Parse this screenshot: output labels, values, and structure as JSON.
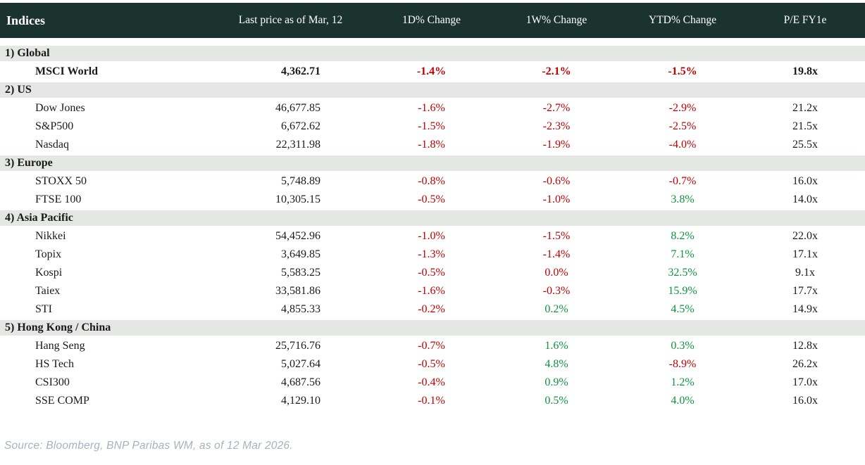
{
  "chart_data": {
    "type": "table",
    "title": "Indices",
    "columns": [
      "Last price as of Mar, 12",
      "1D% Change",
      "1W% Change",
      "YTD% Change",
      "P/E FY1e"
    ],
    "sections": [
      {
        "label": "1) Global",
        "rows": [
          {
            "name": "MSCI World",
            "bold": true,
            "last": "4,362.71",
            "changes": [
              {
                "v": "-1.4%",
                "c": "neg"
              },
              {
                "v": "-2.1%",
                "c": "neg"
              },
              {
                "v": "-1.5%",
                "c": "neg"
              }
            ],
            "pe": "19.8x"
          }
        ]
      },
      {
        "label": "2) US",
        "rows": [
          {
            "name": "Dow Jones",
            "bold": false,
            "last": "46,677.85",
            "changes": [
              {
                "v": "-1.6%",
                "c": "neg"
              },
              {
                "v": "-2.7%",
                "c": "neg"
              },
              {
                "v": "-2.9%",
                "c": "neg"
              }
            ],
            "pe": "21.2x"
          },
          {
            "name": "S&P500",
            "bold": false,
            "last": "6,672.62",
            "changes": [
              {
                "v": "-1.5%",
                "c": "neg"
              },
              {
                "v": "-2.3%",
                "c": "neg"
              },
              {
                "v": "-2.5%",
                "c": "neg"
              }
            ],
            "pe": "21.5x"
          },
          {
            "name": "Nasdaq",
            "bold": false,
            "last": "22,311.98",
            "changes": [
              {
                "v": "-1.8%",
                "c": "neg"
              },
              {
                "v": "-1.9%",
                "c": "neg"
              },
              {
                "v": "-4.0%",
                "c": "neg"
              }
            ],
            "pe": "25.5x"
          }
        ]
      },
      {
        "label": "3) Europe",
        "rows": [
          {
            "name": "STOXX 50",
            "bold": false,
            "last": "5,748.89",
            "changes": [
              {
                "v": "-0.8%",
                "c": "neg"
              },
              {
                "v": "-0.6%",
                "c": "neg"
              },
              {
                "v": "-0.7%",
                "c": "neg"
              }
            ],
            "pe": "16.0x"
          },
          {
            "name": "FTSE 100",
            "bold": false,
            "last": "10,305.15",
            "changes": [
              {
                "v": "-0.5%",
                "c": "neg"
              },
              {
                "v": "-1.0%",
                "c": "neg"
              },
              {
                "v": "3.8%",
                "c": "pos"
              }
            ],
            "pe": "14.0x"
          }
        ]
      },
      {
        "label": "4) Asia Pacific",
        "rows": [
          {
            "name": "Nikkei",
            "bold": false,
            "last": "54,452.96",
            "changes": [
              {
                "v": "-1.0%",
                "c": "neg"
              },
              {
                "v": "-1.5%",
                "c": "neg"
              },
              {
                "v": "8.2%",
                "c": "pos"
              }
            ],
            "pe": "22.0x"
          },
          {
            "name": "Topix",
            "bold": false,
            "last": "3,649.85",
            "changes": [
              {
                "v": "-1.3%",
                "c": "neg"
              },
              {
                "v": "-1.4%",
                "c": "neg"
              },
              {
                "v": "7.1%",
                "c": "pos"
              }
            ],
            "pe": "17.1x"
          },
          {
            "name": "Kospi",
            "bold": false,
            "last": "5,583.25",
            "changes": [
              {
                "v": "-0.5%",
                "c": "neg"
              },
              {
                "v": "0.0%",
                "c": "neg"
              },
              {
                "v": "32.5%",
                "c": "pos"
              }
            ],
            "pe": "9.1x"
          },
          {
            "name": "Taiex",
            "bold": false,
            "last": "33,581.86",
            "changes": [
              {
                "v": "-1.6%",
                "c": "neg"
              },
              {
                "v": "-0.3%",
                "c": "neg"
              },
              {
                "v": "15.9%",
                "c": "pos"
              }
            ],
            "pe": "17.7x"
          },
          {
            "name": "STI",
            "bold": false,
            "last": "4,855.33",
            "changes": [
              {
                "v": "-0.2%",
                "c": "neg"
              },
              {
                "v": "0.2%",
                "c": "pos"
              },
              {
                "v": "4.5%",
                "c": "pos"
              }
            ],
            "pe": "14.9x"
          }
        ]
      },
      {
        "label": "5) Hong Kong / China",
        "rows": [
          {
            "name": "Hang Seng",
            "bold": false,
            "last": "25,716.76",
            "changes": [
              {
                "v": "-0.7%",
                "c": "neg"
              },
              {
                "v": "1.6%",
                "c": "pos"
              },
              {
                "v": "0.3%",
                "c": "pos"
              }
            ],
            "pe": "12.8x"
          },
          {
            "name": "HS Tech",
            "bold": false,
            "last": "5,027.64",
            "changes": [
              {
                "v": "-0.5%",
                "c": "neg"
              },
              {
                "v": "4.8%",
                "c": "pos"
              },
              {
                "v": "-8.9%",
                "c": "neg"
              }
            ],
            "pe": "26.2x"
          },
          {
            "name": "CSI300",
            "bold": false,
            "last": "4,687.56",
            "changes": [
              {
                "v": "-0.4%",
                "c": "neg"
              },
              {
                "v": "0.9%",
                "c": "pos"
              },
              {
                "v": "1.2%",
                "c": "pos"
              }
            ],
            "pe": "17.0x"
          },
          {
            "name": "SSE COMP",
            "bold": false,
            "last": "4,129.10",
            "changes": [
              {
                "v": "-0.1%",
                "c": "neg"
              },
              {
                "v": "0.5%",
                "c": "pos"
              },
              {
                "v": "4.0%",
                "c": "pos"
              }
            ],
            "pe": "16.0x"
          }
        ]
      }
    ]
  },
  "footer": {
    "source": "Source: Bloomberg, BNP Paribas WM, as of 12 Mar 2026."
  },
  "colors": {
    "header_bg": "#1b332e",
    "header_text": "#ffffff",
    "section_bg": "#e4e7e3",
    "negative": "#c00000",
    "positive": "#0c933e",
    "source_text": "#a7b2bb"
  }
}
